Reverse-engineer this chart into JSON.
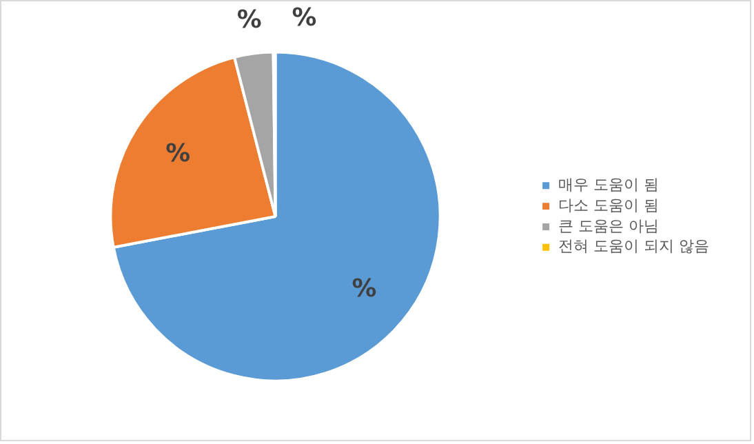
{
  "chart_data": {
    "type": "pie",
    "categories": [
      "매우 도움이 됨",
      "다소 도움이 됨",
      "큰 도움은 아님",
      "전혀 도움이 되지 않음"
    ],
    "values": [
      72,
      24,
      3.8,
      0.2
    ],
    "colors": [
      "#5b9bd5",
      "#ed7d31",
      "#a5a5a5",
      "#ffc000"
    ],
    "value_labels": [
      "%",
      "%",
      "%",
      "%"
    ],
    "legend": "right"
  }
}
